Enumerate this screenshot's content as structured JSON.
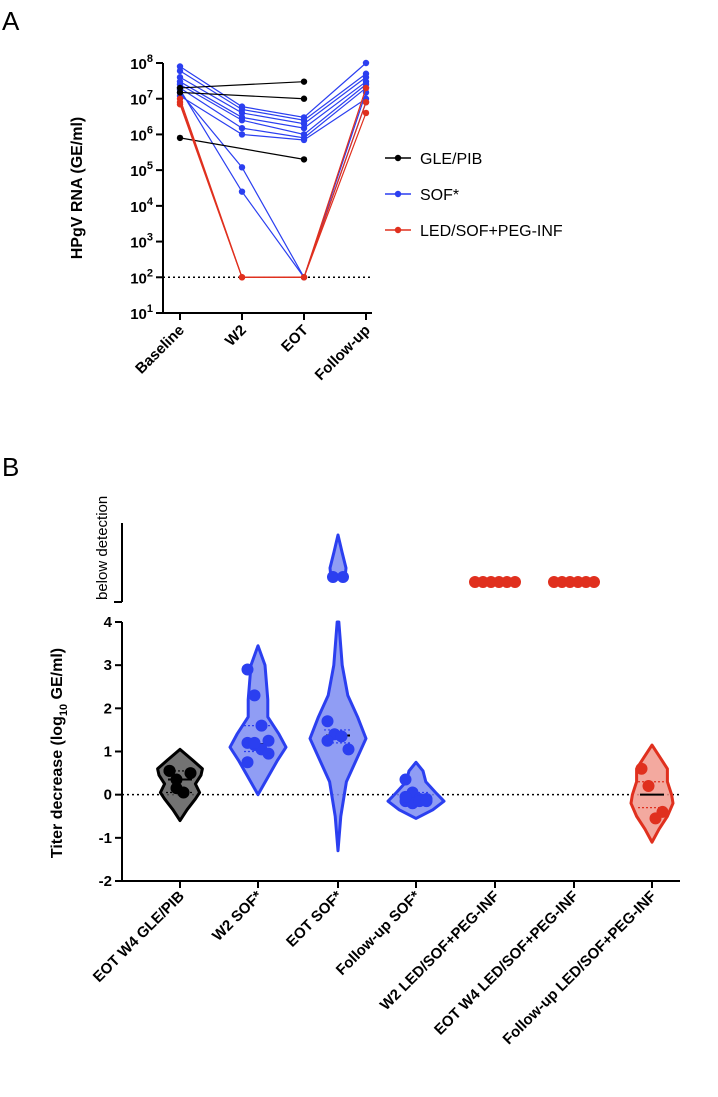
{
  "panel_a": {
    "label": "A"
  },
  "panel_b": {
    "label": "B"
  },
  "colors": {
    "gle": "#000000",
    "sof": "#2b3ff0",
    "led": "#e0301e"
  },
  "chart_data": [
    {
      "panel": "A",
      "type": "line",
      "yscale": "log10",
      "ylabel": "HPgV RNA (GE/ml)",
      "yticks": [
        {
          "base": "10",
          "exp": "1",
          "value": 10
        },
        {
          "base": "10",
          "exp": "2",
          "value": 100
        },
        {
          "base": "10",
          "exp": "3",
          "value": 1000
        },
        {
          "base": "10",
          "exp": "4",
          "value": 10000
        },
        {
          "base": "10",
          "exp": "5",
          "value": 100000
        },
        {
          "base": "10",
          "exp": "6",
          "value": 1000000
        },
        {
          "base": "10",
          "exp": "7",
          "value": 10000000
        },
        {
          "base": "10",
          "exp": "8",
          "value": 100000000
        }
      ],
      "ylim_log10": [
        1,
        8
      ],
      "categories": [
        "Baseline",
        "W2",
        "EOT",
        "Follow-up"
      ],
      "detection_limit": 100,
      "legend": [
        {
          "label": "GLE/PIB",
          "color": "#000000"
        },
        {
          "label": "SOF*",
          "color": "#2b3ff0"
        },
        {
          "label": "LED/SOF+PEG-INF",
          "color": "#e0301e"
        }
      ],
      "series": [
        {
          "group": "GLE/PIB",
          "points": [
            [
              0,
              20000000
            ],
            [
              2,
              30000000
            ]
          ]
        },
        {
          "group": "GLE/PIB",
          "points": [
            [
              0,
              15000000
            ],
            [
              2,
              10000000
            ]
          ]
        },
        {
          "group": "GLE/PIB",
          "points": [
            [
              0,
              800000
            ],
            [
              2,
              200000
            ]
          ]
        },
        {
          "group": "SOF*",
          "points": [
            [
              0,
              80000000
            ],
            [
              1,
              6000000
            ],
            [
              2,
              3000000
            ],
            [
              3,
              100000000
            ]
          ]
        },
        {
          "group": "SOF*",
          "points": [
            [
              0,
              60000000
            ],
            [
              1,
              5000000
            ],
            [
              2,
              2500000
            ],
            [
              3,
              50000000
            ]
          ]
        },
        {
          "group": "SOF*",
          "points": [
            [
              0,
              40000000
            ],
            [
              1,
              4000000
            ],
            [
              2,
              2000000
            ],
            [
              3,
              40000000
            ]
          ]
        },
        {
          "group": "SOF*",
          "points": [
            [
              0,
              30000000
            ],
            [
              1,
              3000000
            ],
            [
              2,
              1500000
            ],
            [
              3,
              30000000
            ]
          ]
        },
        {
          "group": "SOF*",
          "points": [
            [
              0,
              25000000
            ],
            [
              1,
              2500000
            ],
            [
              2,
              1000000
            ],
            [
              3,
              25000000
            ]
          ]
        },
        {
          "group": "SOF*",
          "points": [
            [
              0,
              20000000
            ],
            [
              1,
              1500000
            ],
            [
              2,
              800000
            ],
            [
              3,
              20000000
            ]
          ]
        },
        {
          "group": "SOF*",
          "points": [
            [
              0,
              12000000
            ],
            [
              1,
              1000000
            ],
            [
              2,
              700000
            ],
            [
              3,
              10000000
            ]
          ]
        },
        {
          "group": "SOF*",
          "points": [
            [
              0,
              15000000
            ],
            [
              1,
              120000
            ],
            [
              2,
              100
            ],
            [
              3,
              15000000
            ]
          ]
        },
        {
          "group": "SOF*",
          "points": [
            [
              0,
              18000000
            ],
            [
              1,
              25000
            ],
            [
              2,
              100
            ],
            [
              3,
              8000000
            ]
          ]
        },
        {
          "group": "LED/SOF+PEG-INF",
          "points": [
            [
              0,
              10000000
            ],
            [
              1,
              100
            ],
            [
              2,
              100
            ],
            [
              3,
              20000000
            ]
          ]
        },
        {
          "group": "LED/SOF+PEG-INF",
          "points": [
            [
              0,
              8000000
            ],
            [
              1,
              100
            ],
            [
              2,
              100
            ],
            [
              3,
              8000000
            ]
          ]
        },
        {
          "group": "LED/SOF+PEG-INF",
          "points": [
            [
              0,
              7000000
            ],
            [
              1,
              100
            ],
            [
              2,
              100
            ],
            [
              3,
              4000000
            ]
          ]
        }
      ]
    },
    {
      "panel": "B",
      "type": "violin",
      "ylabel_main": "Titer decrease (log",
      "ylabel_sub": "10",
      "ylabel_tail": " GE/ml)",
      "yticks": [
        "-2",
        "-1",
        "0",
        "1",
        "2",
        "3",
        "4"
      ],
      "ylim": [
        -2,
        4
      ],
      "break_label": "below detection",
      "reference_line": 0,
      "categories": [
        "EOT W4 GLE/PIB",
        "W2 SOF*",
        "EOT SOF*",
        "Follow-up SOF*",
        "W2 LED/SOF+PEG-INF",
        "EOT W4 LED/SOF+PEG-INF",
        "Follow-up LED/SOF+PEG-INF"
      ],
      "groups": [
        {
          "category": "EOT W4 GLE/PIB",
          "color": "#000000",
          "fill": "#5a5a5a",
          "points": [
            0.55,
            0.35,
            0.05,
            0.5,
            0.55,
            0.15
          ],
          "median": 0.35,
          "q1": 0.05,
          "q3": 0.55,
          "violin": {
            "min": -0.6,
            "max": 1.05,
            "profile": [
              [
                -0.6,
                0
              ],
              [
                -0.35,
                0.25
              ],
              [
                -0.1,
                0.55
              ],
              [
                0.05,
                0.7
              ],
              [
                0.25,
                0.55
              ],
              [
                0.45,
                0.75
              ],
              [
                0.6,
                0.8
              ],
              [
                0.8,
                0.45
              ],
              [
                1.05,
                0
              ]
            ]
          }
        },
        {
          "category": "W2 SOF*",
          "color": "#2b3ff0",
          "fill": "#7c8cf2",
          "points": [
            2.9,
            2.3,
            1.6,
            1.25,
            1.2,
            1.15,
            1.05,
            0.95,
            0.75,
            1.2
          ],
          "median": 1.17,
          "q1": 1.0,
          "q3": 1.6,
          "violin": {
            "min": 0.0,
            "max": 3.45,
            "profile": [
              [
                0,
                0
              ],
              [
                0.4,
                0.35
              ],
              [
                0.8,
                0.7
              ],
              [
                1.1,
                1.0
              ],
              [
                1.4,
                0.75
              ],
              [
                1.8,
                0.35
              ],
              [
                2.2,
                0.35
              ],
              [
                2.6,
                0.3
              ],
              [
                3.0,
                0.25
              ],
              [
                3.45,
                0
              ]
            ]
          }
        },
        {
          "category": "EOT SOF*",
          "color": "#2b3ff0",
          "fill": "#7c8cf2",
          "points": [
            1.7,
            1.4,
            1.35,
            1.05,
            1.25
          ],
          "median": 1.37,
          "q1": 1.2,
          "q3": 1.5,
          "violin": {
            "min": -1.3,
            "max": 4.0,
            "profile": [
              [
                -1.3,
                0
              ],
              [
                -0.5,
                0.1
              ],
              [
                0.3,
                0.3
              ],
              [
                0.8,
                0.65
              ],
              [
                1.3,
                1.0
              ],
              [
                1.8,
                0.7
              ],
              [
                2.3,
                0.35
              ],
              [
                3.0,
                0.15
              ],
              [
                4.0,
                0.03
              ]
            ]
          },
          "bd_points": 2
        },
        {
          "category": "Follow-up SOF*",
          "color": "#2b3ff0",
          "fill": "#7c8cf2",
          "points": [
            0.35,
            0.05,
            -0.1,
            -0.1,
            -0.15,
            -0.2,
            -0.15,
            -0.15,
            -0.05
          ],
          "median": -0.1,
          "q1": -0.18,
          "q3": 0.05,
          "violin": {
            "min": -0.55,
            "max": 0.75,
            "profile": [
              [
                -0.55,
                0
              ],
              [
                -0.35,
                0.6
              ],
              [
                -0.15,
                1.0
              ],
              [
                0.05,
                0.7
              ],
              [
                0.3,
                0.35
              ],
              [
                0.55,
                0.25
              ],
              [
                0.75,
                0
              ]
            ]
          }
        },
        {
          "category": "W2 LED/SOF+PEG-INF",
          "color": "#e0301e",
          "fill": "#e0301e",
          "points": [],
          "bd_points": 6
        },
        {
          "category": "EOT W4 LED/SOF+PEG-INF",
          "color": "#e0301e",
          "fill": "#e0301e",
          "points": [],
          "bd_points": 6
        },
        {
          "category": "Follow-up LED/SOF+PEG-INF",
          "color": "#e0301e",
          "fill": "#f19a8e",
          "points": [
            0.6,
            0.2,
            -0.55,
            -0.4
          ],
          "median": 0.0,
          "q1": -0.3,
          "q3": 0.3,
          "violin": {
            "min": -1.1,
            "max": 1.15,
            "profile": [
              [
                -1.1,
                0
              ],
              [
                -0.8,
                0.25
              ],
              [
                -0.5,
                0.55
              ],
              [
                -0.2,
                0.75
              ],
              [
                0.0,
                0.7
              ],
              [
                0.3,
                0.55
              ],
              [
                0.6,
                0.55
              ],
              [
                0.85,
                0.3
              ],
              [
                1.15,
                0
              ]
            ]
          }
        }
      ]
    }
  ]
}
